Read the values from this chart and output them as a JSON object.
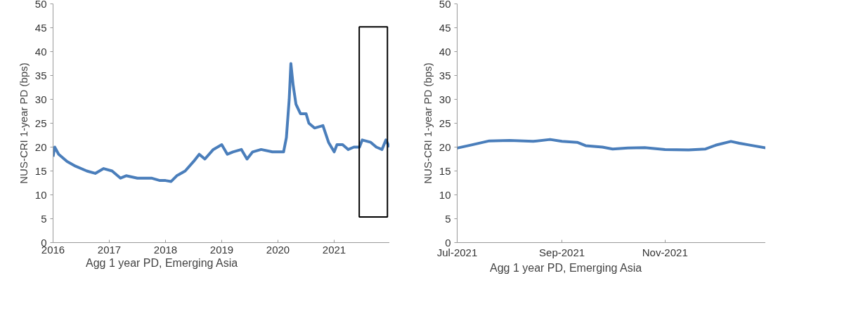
{
  "chart_data": [
    {
      "type": "line",
      "ylabel": "NUS-CRI 1-year PD (bps)",
      "xlim": [
        2016,
        2022
      ],
      "xticks": [
        2016,
        2017,
        2018,
        2019,
        2020,
        2021
      ],
      "ylim": [
        0,
        50
      ],
      "yticks": [
        0,
        5,
        10,
        15,
        20,
        25,
        30,
        35,
        40,
        45,
        50
      ],
      "grid": false,
      "legend": "bottom",
      "x": [
        2016.0,
        2016.03,
        2016.1,
        2016.25,
        2016.4,
        2016.6,
        2016.75,
        2016.9,
        2017.05,
        2017.2,
        2017.3,
        2017.5,
        2017.75,
        2017.9,
        2018.0,
        2018.1,
        2018.2,
        2018.35,
        2018.5,
        2018.6,
        2018.7,
        2018.85,
        2019.0,
        2019.1,
        2019.2,
        2019.35,
        2019.45,
        2019.55,
        2019.7,
        2019.9,
        2020.0,
        2020.1,
        2020.15,
        2020.2,
        2020.23,
        2020.27,
        2020.32,
        2020.4,
        2020.5,
        2020.55,
        2020.65,
        2020.8,
        2020.9,
        2021.0,
        2021.05,
        2021.15,
        2021.25,
        2021.35,
        2021.45,
        2021.5,
        2021.65,
        2021.75,
        2021.85,
        2021.92,
        2021.98
      ],
      "series": [
        {
          "name": "Agg 1 year PD, Emerging Asia",
          "color": "#4a7ebb",
          "values": [
            18,
            20,
            18.5,
            17,
            16,
            15,
            14.5,
            15.5,
            15,
            13.5,
            14,
            13.5,
            13.5,
            13,
            13,
            12.8,
            14,
            15,
            17,
            18.5,
            17.5,
            19.5,
            20.5,
            18.5,
            19,
            19.5,
            17.5,
            19,
            19.5,
            19,
            19,
            19,
            22,
            30,
            37.5,
            33,
            29,
            27,
            27,
            25,
            24,
            24.5,
            21,
            19,
            20.5,
            20.5,
            19.5,
            20,
            20,
            21.5,
            21,
            20,
            19.5,
            21.5,
            20
          ]
        }
      ]
    },
    {
      "type": "line",
      "ylabel": "NUS-CRI 1-year PD (bps)",
      "xlim": [
        "2021-07-01",
        "2021-12-31"
      ],
      "xticks": [
        {
          "value": "2021-07-01",
          "label": "Jul-2021"
        },
        {
          "value": "2021-09-01",
          "label": "Sep-2021"
        },
        {
          "value": "2021-11-01",
          "label": "Nov-2021"
        }
      ],
      "ylim": [
        0,
        50
      ],
      "yticks": [
        0,
        5,
        10,
        15,
        20,
        25,
        30,
        35,
        40,
        45,
        50
      ],
      "grid": false,
      "legend": "bottom",
      "x": [
        "2021-07-01",
        "2021-07-10",
        "2021-07-20",
        "2021-08-01",
        "2021-08-15",
        "2021-08-25",
        "2021-09-01",
        "2021-09-10",
        "2021-09-15",
        "2021-09-25",
        "2021-10-01",
        "2021-10-10",
        "2021-10-20",
        "2021-11-01",
        "2021-11-15",
        "2021-11-25",
        "2021-12-01",
        "2021-12-10",
        "2021-12-15",
        "2021-12-20",
        "2021-12-31"
      ],
      "series": [
        {
          "name": "Agg 1 year PD, Emerging Asia",
          "color": "#4a7ebb",
          "values": [
            19.8,
            20.5,
            21.3,
            21.4,
            21.2,
            21.6,
            21.2,
            21,
            20.3,
            20,
            19.6,
            19.8,
            19.9,
            19.5,
            19.4,
            19.6,
            20.4,
            21.2,
            20.8,
            20.5,
            19.8
          ]
        }
      ]
    }
  ]
}
